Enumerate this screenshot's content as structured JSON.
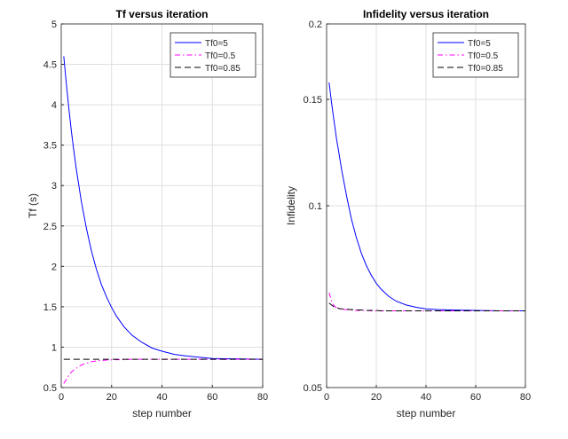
{
  "chart_data": [
    {
      "type": "line",
      "title": "Tf versus iteration",
      "xlabel": "step number",
      "ylabel": "Tf (s)",
      "x": [
        1,
        2,
        3,
        4,
        5,
        6,
        8,
        10,
        12,
        14,
        16,
        18,
        20,
        22,
        25,
        28,
        32,
        36,
        40,
        45,
        50,
        60,
        70,
        80
      ],
      "series": [
        {
          "name": "Tf0=5",
          "color": "#0000ff",
          "dash": "solid",
          "values": [
            4.6,
            4.27,
            3.96,
            3.68,
            3.43,
            3.2,
            2.8,
            2.47,
            2.19,
            1.96,
            1.77,
            1.62,
            1.49,
            1.38,
            1.25,
            1.15,
            1.06,
            0.99,
            0.95,
            0.91,
            0.89,
            0.86,
            0.855,
            0.85
          ]
        },
        {
          "name": "Tf0=0.5",
          "color": "#ff00ff",
          "dash": "dashdot",
          "values": [
            0.55,
            0.6,
            0.65,
            0.69,
            0.72,
            0.74,
            0.78,
            0.8,
            0.82,
            0.83,
            0.835,
            0.84,
            0.843,
            0.845,
            0.845,
            0.85,
            0.85,
            0.85,
            0.85,
            0.85,
            0.85,
            0.85,
            0.85,
            0.85
          ]
        },
        {
          "name": "Tf0=0.85",
          "color": "#000000",
          "dash": "dashed",
          "values": [
            0.85,
            0.85,
            0.85,
            0.85,
            0.85,
            0.85,
            0.85,
            0.85,
            0.85,
            0.85,
            0.85,
            0.85,
            0.85,
            0.85,
            0.85,
            0.85,
            0.85,
            0.85,
            0.85,
            0.85,
            0.85,
            0.85,
            0.85,
            0.85
          ]
        }
      ],
      "xlim": [
        0,
        80
      ],
      "xticks": [
        0,
        20,
        40,
        60,
        80
      ],
      "ylim": [
        0.5,
        5
      ],
      "yticks": [
        0.5,
        1,
        1.5,
        2,
        2.5,
        3,
        3.5,
        4,
        4.5,
        5
      ],
      "log_y": false,
      "grid": true,
      "legend": "upper-right"
    },
    {
      "type": "line",
      "title": "Infidelity versus iteration",
      "xlabel": "step number",
      "ylabel": "Infidelity",
      "x": [
        1,
        2,
        3,
        4,
        5,
        6,
        8,
        10,
        12,
        14,
        16,
        18,
        20,
        22,
        25,
        28,
        32,
        36,
        40,
        45,
        50,
        60,
        70,
        80
      ],
      "series": [
        {
          "name": "Tf0=5",
          "color": "#0000ff",
          "dash": "solid",
          "values": [
            0.16,
            0.148,
            0.138,
            0.129,
            0.122,
            0.115,
            0.104,
            0.095,
            0.0885,
            0.0834,
            0.0796,
            0.0767,
            0.0744,
            0.0727,
            0.0708,
            0.0695,
            0.0685,
            0.0679,
            0.0675,
            0.0673,
            0.0672,
            0.0671,
            0.067,
            0.067
          ]
        },
        {
          "name": "Tf0=0.5",
          "color": "#ff00ff",
          "dash": "dashdot",
          "values": [
            0.0718,
            0.0695,
            0.0683,
            0.0678,
            0.0675,
            0.0674,
            0.0673,
            0.0672,
            0.0671,
            0.0671,
            0.0671,
            0.067,
            0.067,
            0.067,
            0.067,
            0.067,
            0.067,
            0.067,
            0.067,
            0.067,
            0.067,
            0.067,
            0.067,
            0.067
          ]
        },
        {
          "name": "Tf0=0.85",
          "color": "#000000",
          "dash": "dashed",
          "values": [
            0.069,
            0.0685,
            0.068,
            0.0678,
            0.0676,
            0.0675,
            0.0674,
            0.0673,
            0.0672,
            0.0672,
            0.0671,
            0.0671,
            0.0671,
            0.067,
            0.067,
            0.067,
            0.067,
            0.067,
            0.067,
            0.067,
            0.067,
            0.067,
            0.067,
            0.067
          ]
        }
      ],
      "xlim": [
        0,
        80
      ],
      "xticks": [
        0,
        20,
        40,
        60,
        80
      ],
      "ylim": [
        0.05,
        0.2
      ],
      "yticks": [
        0.05,
        0.1,
        0.15,
        0.2
      ],
      "log_y": true,
      "grid": true,
      "legend": "upper-right"
    }
  ]
}
